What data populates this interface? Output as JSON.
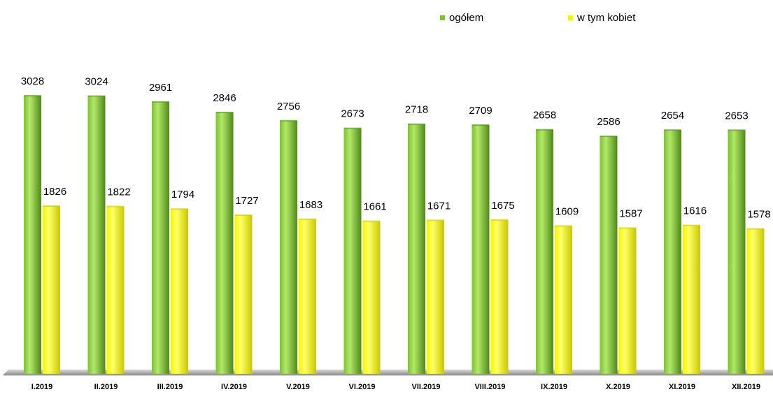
{
  "colors": {
    "green": "#7dc32e",
    "green_light": "#b2e86a",
    "green_dark": "#4f8a15",
    "yellow": "#f5f500",
    "yellow_light": "#ffff66",
    "yellow_dark": "#c8c800",
    "axis": "#9a9a9a"
  },
  "legend": {
    "items": [
      {
        "label": "ogółem",
        "color": "#7dc32e"
      },
      {
        "label": "w tym kobiet",
        "color": "#f5f500"
      }
    ],
    "placement": "top-right"
  },
  "chart_data": {
    "type": "bar",
    "categories": [
      "I.2019",
      "II.2019",
      "III.2019",
      "IV.2019",
      "V.2019",
      "VI.2019",
      "VII.2019",
      "VIII.2019",
      "IX.2019",
      "X.2019",
      "XI.2019",
      "XII.2019"
    ],
    "series": [
      {
        "name": "ogółem",
        "values": [
          3028,
          3024,
          2961,
          2846,
          2756,
          2673,
          2718,
          2709,
          2658,
          2586,
          2654,
          2653
        ]
      },
      {
        "name": "w tym kobiet",
        "values": [
          1826,
          1822,
          1794,
          1727,
          1683,
          1661,
          1671,
          1675,
          1609,
          1587,
          1616,
          1578
        ]
      }
    ],
    "title": "",
    "xlabel": "",
    "ylabel": "",
    "ylim": [
      0,
      3400
    ],
    "grid": false,
    "data_labels": true
  }
}
